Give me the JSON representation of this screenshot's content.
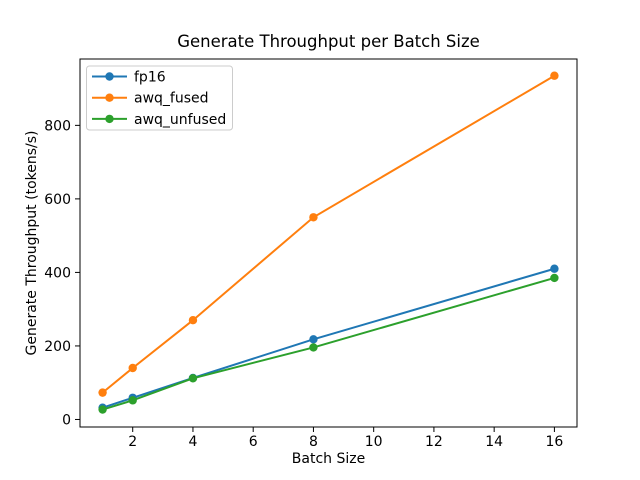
{
  "figure": {
    "background": "#ffffff",
    "axis_color": "#000000",
    "legend_border_color": "#cccccc",
    "legend_background": "#ffffff"
  },
  "chart_data": {
    "type": "line",
    "title": "Generate Throughput per Batch Size",
    "xlabel": "Batch Size",
    "ylabel": "Generate Throughput (tokens/s)",
    "x": [
      1,
      2,
      4,
      8,
      16
    ],
    "series": [
      {
        "name": "fp16",
        "color": "#1f77b4",
        "values": [
          32,
          59,
          113,
          218,
          410
        ]
      },
      {
        "name": "awq_fused",
        "color": "#ff7f0e",
        "values": [
          73,
          140,
          270,
          550,
          935
        ]
      },
      {
        "name": "awq_unfused",
        "color": "#2ca02c",
        "values": [
          27,
          52,
          112,
          196,
          385
        ]
      }
    ],
    "xticks": [
      2,
      4,
      6,
      8,
      10,
      12,
      14,
      16
    ],
    "yticks": [
      0,
      200,
      400,
      600,
      800
    ],
    "xlim": [
      0.25,
      16.75
    ],
    "ylim": [
      -20.5,
      980.5
    ],
    "legend_position": "upper left",
    "grid": false,
    "marker": "o"
  }
}
